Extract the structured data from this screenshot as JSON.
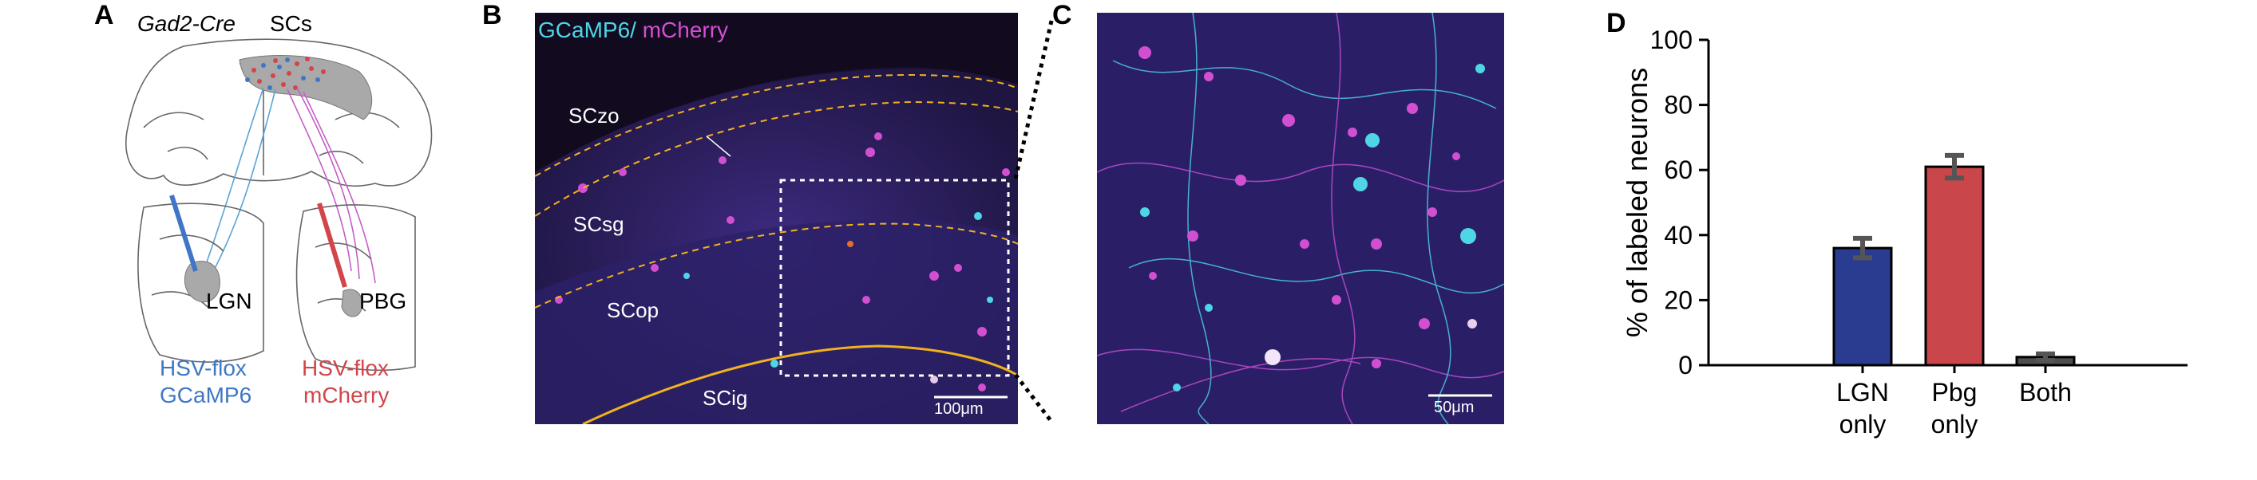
{
  "panels": {
    "a": {
      "label": "A",
      "mouse_line": "Gad2-Cre",
      "region": "SCs",
      "lgn": "LGN",
      "pbg": "PBG",
      "virus_left_1": "HSV-flox",
      "virus_left_2": "GCaMP6",
      "virus_right_1": "HSV-flox",
      "virus_right_2": "mCherry",
      "colors": {
        "blue": "#3f77c6",
        "red": "#d2454b",
        "magenta": "#c55ec6",
        "gray": "#a9a9a9"
      }
    },
    "b": {
      "label": "B",
      "stain_1": "GCaMP6/",
      "stain_2": " mCherry",
      "layer_zo": "SCzo",
      "layer_sg": "SCsg",
      "layer_op": "SCop",
      "layer_ig": "SCig",
      "scale": "100μm",
      "colors": {
        "cyan": "#4fd6e6",
        "magenta": "#d24fd2",
        "boundary": "#f2b21d"
      }
    },
    "c": {
      "label": "C",
      "scale": "50μm"
    },
    "d": {
      "label": "D"
    }
  },
  "chart_data": {
    "type": "bar",
    "categories": [
      "LGN\nonly",
      "Pbg\nonly",
      "Both"
    ],
    "category_lines": [
      [
        "LGN",
        "only"
      ],
      [
        "Pbg",
        "only"
      ],
      [
        "Both"
      ]
    ],
    "values": [
      36,
      61,
      2.5
    ],
    "errors": [
      3,
      3.5,
      1
    ],
    "bar_colors": [
      "#2a3c8f",
      "#c9474b",
      "#4e4e4e"
    ],
    "ylabel": "% of labeled neurons",
    "ylim": [
      0,
      100
    ],
    "yticks": [
      0,
      20,
      40,
      60,
      80,
      100
    ],
    "grid": false,
    "legend": "none"
  }
}
